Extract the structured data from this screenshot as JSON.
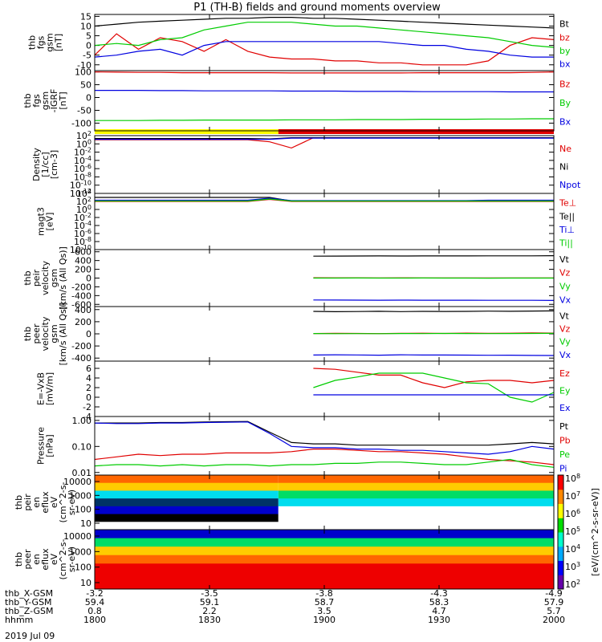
{
  "title": "P1 (TH-B) fields and ground moments overview",
  "date": "2019 Jul 09",
  "time_axis": {
    "row_labels": [
      "thb_X-GSM",
      "thb_Y-GSM",
      "thb_Z-GSM",
      "hhmm"
    ],
    "columns": [
      {
        "x": -3.2,
        "y": 59.4,
        "z": 0.8,
        "hhmm": "1800"
      },
      {
        "x": -3.5,
        "y": 59.1,
        "z": 2.2,
        "hhmm": "1830"
      },
      {
        "x": -3.8,
        "y": 58.7,
        "z": 3.5,
        "hhmm": "1900"
      },
      {
        "x": -4.3,
        "y": 58.3,
        "z": 4.7,
        "hhmm": "1930"
      },
      {
        "x": -4.9,
        "y": 57.9,
        "z": 5.7,
        "hhmm": "2000"
      }
    ]
  },
  "colors": {
    "black": "#000000",
    "red": "#e00000",
    "green": "#00cc00",
    "blue": "#0000e0",
    "yellow": "#ffff00"
  },
  "colorbar": {
    "label": "[eV/(cm^2-s-sr-eV)]",
    "ticks": [
      "10^2",
      "10^3",
      "10^4",
      "10^5",
      "10^6",
      "10^7",
      "10^8"
    ]
  },
  "status_bar": [
    {
      "from": "1800",
      "to": "1848",
      "color": "yellow"
    },
    {
      "from": "1848",
      "to": "2000",
      "color": "red"
    }
  ],
  "panels": [
    {
      "id": "fgs-mag",
      "ylabel": [
        "thb",
        "fgs",
        "gsm",
        "[nT]"
      ],
      "type": "line",
      "scale": "linear",
      "yticks": [
        "15",
        "10",
        "5",
        "0",
        "-5",
        "-10"
      ],
      "ylim": [
        -13,
        16
      ],
      "series": [
        {
          "name": "Bt",
          "color": "black",
          "values": [
            10,
            11,
            12,
            12.5,
            13,
            13.5,
            14,
            14,
            14.5,
            14.5,
            14,
            14,
            13.5,
            13,
            12.5,
            12,
            11.5,
            11,
            10.5,
            10,
            9.5,
            9
          ]
        },
        {
          "name": "bz",
          "color": "red",
          "values": [
            -5,
            6,
            -2,
            4,
            2,
            -3,
            3,
            -3,
            -6,
            -7,
            -7,
            -8,
            -8,
            -9,
            -9,
            -10,
            -10,
            -10,
            -8,
            0,
            4,
            3
          ]
        },
        {
          "name": "by",
          "color": "green",
          "values": [
            0,
            1,
            0,
            3,
            4,
            8,
            10,
            12,
            12,
            12,
            11,
            10,
            10,
            9,
            8,
            7,
            6,
            5,
            4,
            2,
            0,
            -1
          ]
        },
        {
          "name": "bx",
          "color": "blue",
          "values": [
            -6,
            -5,
            -3,
            -2,
            -5,
            0,
            2,
            2,
            2,
            2,
            2,
            2,
            2,
            2,
            1,
            0,
            0,
            -2,
            -3,
            -5,
            -6,
            -6
          ]
        }
      ]
    },
    {
      "id": "fgs-ssm",
      "ylabel": [
        "thb",
        "fgs",
        "gsm",
        "-IGRF",
        "[nT]"
      ],
      "type": "line",
      "scale": "linear",
      "yticks": [
        "100",
        "50",
        "0",
        "-50",
        "-100"
      ],
      "ylim": [
        -130,
        105
      ],
      "series": [
        {
          "name": "Bz",
          "color": "red",
          "values": [
            100,
            99,
            98,
            98,
            97,
            97,
            97,
            97,
            97,
            96,
            96,
            96,
            96,
            96,
            96,
            97,
            97,
            97,
            97,
            97,
            98,
            100
          ]
        },
        {
          "name": "By",
          "color": "green",
          "values": [
            -90,
            -90,
            -90,
            -89,
            -89,
            -88,
            -88,
            -88,
            -88,
            -87,
            -87,
            -87,
            -86,
            -86,
            -86,
            -85,
            -85,
            -85,
            -84,
            -84,
            -83,
            -83
          ]
        },
        {
          "name": "Bx",
          "color": "blue",
          "values": [
            28,
            28,
            28,
            27,
            27,
            26,
            26,
            26,
            26,
            25,
            25,
            25,
            24,
            24,
            24,
            23,
            23,
            23,
            23,
            22,
            22,
            22
          ]
        }
      ]
    },
    {
      "id": "density",
      "ylabel": [
        "Density",
        "[1/cc]",
        "[cm-3]"
      ],
      "type": "line",
      "scale": "log",
      "yticks": [
        "10^2",
        "10^0",
        "10^-2",
        "10^-4",
        "10^-6",
        "10^-8",
        "10^-10",
        "10^-12"
      ],
      "ylim": [
        -12,
        2
      ],
      "series": [
        {
          "name": "Ne",
          "color": "red",
          "values": [
            1,
            1,
            1,
            1,
            1,
            1,
            1,
            1,
            0.5,
            -1,
            1.5,
            1.5,
            1.5,
            1.5,
            1.5,
            1.5,
            1.5,
            1.5,
            1.5,
            1.5,
            1.5,
            1.5
          ]
        },
        {
          "name": "Ni",
          "color": "black",
          "values": [
            1.3,
            1.3,
            1.3,
            1.3,
            1.3,
            1.3,
            1.3,
            1.3,
            1.2,
            1.5,
            1.5,
            1.5,
            1.5,
            1.5,
            1.5,
            1.5,
            1.5,
            1.5,
            1.5,
            1.5,
            1.5,
            1.5
          ]
        },
        {
          "name": "Npot",
          "color": "blue",
          "values": [
            1.1,
            1.1,
            1.1,
            1.1,
            1.1,
            1.1,
            1.1,
            1.1,
            1.1,
            1.4,
            1.4,
            1.4,
            1.4,
            1.4,
            1.4,
            1.4,
            1.4,
            1.4,
            1.4,
            1.4,
            1.4,
            1.4
          ]
        }
      ]
    },
    {
      "id": "temperature",
      "ylabel": [
        "magt3",
        "[eV]"
      ],
      "type": "line",
      "scale": "log",
      "yticks": [
        "10^4",
        "10^2",
        "10^0",
        "10^-2",
        "10^-4",
        "10^-6",
        "10^-8",
        "10^-10"
      ],
      "ylim": [
        -10,
        4
      ],
      "series": [
        {
          "name": "Te⊥",
          "color": "red",
          "values": [
            2,
            2,
            2,
            2,
            2,
            2,
            2,
            2,
            2.5,
            2,
            2,
            2,
            2,
            2,
            2,
            2,
            2,
            2,
            2,
            2,
            2,
            2
          ]
        },
        {
          "name": "Te||",
          "color": "black",
          "values": [
            3,
            3,
            3,
            3,
            3,
            3,
            3,
            3,
            3,
            2.1,
            2.1,
            2.1,
            2.1,
            2.1,
            2.1,
            2.1,
            2.1,
            2.1,
            2.1,
            2.1,
            2.1,
            2.1
          ]
        },
        {
          "name": "Ti⊥",
          "color": "blue",
          "values": [
            2.3,
            2.3,
            2.3,
            2.3,
            2.3,
            2.3,
            2.3,
            2.3,
            2.8,
            2.2,
            2.2,
            2.2,
            2.2,
            2.2,
            2.2,
            2.2,
            2.2,
            2.2,
            2.3,
            2.3,
            2.3,
            2.3
          ]
        },
        {
          "name": "Ti||",
          "color": "green",
          "values": [
            2.1,
            2.1,
            2.1,
            2.1,
            2.1,
            2.1,
            2.1,
            2.1,
            2.6,
            2.1,
            2.1,
            2.1,
            2.1,
            2.1,
            2.1,
            2.1,
            2.1,
            2.1,
            2.1,
            2.1,
            2.1,
            2.1
          ]
        }
      ]
    },
    {
      "id": "ion-velocity",
      "ylabel": [
        "thb",
        "peir",
        "velocity",
        "gsm",
        "[km/s (All Qs)]"
      ],
      "type": "line",
      "scale": "linear",
      "yticks": [
        "600",
        "400",
        "200",
        "0",
        "-200",
        "-400",
        "-600"
      ],
      "ylim": [
        -650,
        650
      ],
      "data_start": "1855",
      "series": [
        {
          "name": "Vt",
          "color": "black",
          "values": [
            null,
            null,
            null,
            null,
            null,
            null,
            null,
            null,
            null,
            null,
            500,
            502,
            503,
            505,
            504,
            506,
            505,
            506,
            507,
            508,
            508,
            510
          ]
        },
        {
          "name": "Vz",
          "color": "red",
          "values": [
            null,
            null,
            null,
            null,
            null,
            null,
            null,
            null,
            null,
            null,
            8,
            5,
            6,
            4,
            5,
            3,
            4,
            3,
            2,
            2,
            3,
            2
          ]
        },
        {
          "name": "Vy",
          "color": "green",
          "values": [
            null,
            null,
            null,
            null,
            null,
            null,
            null,
            null,
            null,
            null,
            0,
            0,
            1,
            0,
            0,
            1,
            0,
            0,
            -1,
            0,
            0,
            0
          ]
        },
        {
          "name": "Vx",
          "color": "blue",
          "values": [
            null,
            null,
            null,
            null,
            null,
            null,
            null,
            null,
            null,
            null,
            -500,
            -502,
            -503,
            -505,
            -504,
            -506,
            -505,
            -506,
            -507,
            -508,
            -508,
            -510
          ]
        }
      ]
    },
    {
      "id": "electron-velocity",
      "ylabel": [
        "thb",
        "peer",
        "velocity",
        "gsm",
        "[km/s (All Qs)]"
      ],
      "type": "line",
      "scale": "linear",
      "yticks": [
        "400",
        "200",
        "0",
        "-200",
        "-400"
      ],
      "ylim": [
        -450,
        450
      ],
      "data_start": "1855",
      "series": [
        {
          "name": "Vt",
          "color": "black",
          "values": [
            null,
            null,
            null,
            null,
            null,
            null,
            null,
            null,
            null,
            null,
            370,
            365,
            368,
            372,
            366,
            370,
            369,
            371,
            374,
            372,
            376,
            378
          ]
        },
        {
          "name": "Vz",
          "color": "red",
          "values": [
            null,
            null,
            null,
            null,
            null,
            null,
            null,
            null,
            null,
            null,
            5,
            8,
            6,
            4,
            8,
            10,
            6,
            12,
            8,
            10,
            15,
            12
          ]
        },
        {
          "name": "Vy",
          "color": "green",
          "values": [
            null,
            null,
            null,
            null,
            null,
            null,
            null,
            null,
            null,
            null,
            5,
            2,
            4,
            3,
            5,
            4,
            6,
            5,
            4,
            5,
            6,
            8
          ]
        },
        {
          "name": "Vx",
          "color": "blue",
          "values": [
            null,
            null,
            null,
            null,
            null,
            null,
            null,
            null,
            null,
            null,
            -350,
            -345,
            -348,
            -352,
            -346,
            -350,
            -349,
            -351,
            -354,
            -352,
            -356,
            -358
          ]
        }
      ]
    },
    {
      "id": "efield",
      "ylabel": [
        "E=-VxB",
        "[mV/m]"
      ],
      "type": "line",
      "scale": "linear",
      "yticks": [
        "6",
        "4",
        "2",
        "0",
        "-2",
        "-4"
      ],
      "ylim": [
        -4,
        7.5
      ],
      "data_start": "1855",
      "series": [
        {
          "name": "Ez",
          "color": "red",
          "values": [
            null,
            null,
            null,
            null,
            null,
            null,
            null,
            null,
            null,
            null,
            6,
            5.8,
            5.2,
            4.6,
            4.6,
            3,
            2,
            3.2,
            3.5,
            3.5,
            3,
            3.5
          ]
        },
        {
          "name": "Ey",
          "color": "green",
          "values": [
            null,
            null,
            null,
            null,
            null,
            null,
            null,
            null,
            null,
            null,
            2,
            3.5,
            4.2,
            5,
            5,
            5,
            4,
            3,
            2.8,
            0,
            -1,
            1
          ]
        },
        {
          "name": "Ex",
          "color": "blue",
          "values": [
            null,
            null,
            null,
            null,
            null,
            null,
            null,
            null,
            null,
            null,
            0.5,
            0.5,
            0.5,
            0.5,
            0.5,
            0.5,
            0.5,
            0.5,
            0.5,
            0.5,
            0.5,
            0.5
          ]
        }
      ]
    },
    {
      "id": "pressure",
      "ylabel": [
        "Pressure",
        "[nPa]"
      ],
      "type": "line",
      "scale": "log",
      "yticks": [
        "1.00",
        "0.10",
        "0.01"
      ],
      "ylim": [
        -2.1,
        0.15
      ],
      "series": [
        {
          "name": "Pt",
          "color": "black",
          "values": [
            -0.1,
            -0.1,
            -0.1,
            -0.08,
            -0.08,
            -0.06,
            -0.05,
            -0.04,
            -0.45,
            -0.85,
            -0.9,
            -0.9,
            -0.95,
            -0.95,
            -0.95,
            -0.95,
            -0.95,
            -0.95,
            -0.95,
            -0.9,
            -0.85,
            -0.9
          ]
        },
        {
          "name": "Pb",
          "color": "red",
          "values": [
            -1.5,
            -1.4,
            -1.3,
            -1.35,
            -1.3,
            -1.3,
            -1.25,
            -1.25,
            -1.25,
            -1.2,
            -1.1,
            -1.1,
            -1.15,
            -1.2,
            -1.2,
            -1.25,
            -1.3,
            -1.4,
            -1.5,
            -1.55,
            -1.6,
            -1.7
          ]
        },
        {
          "name": "Pe",
          "color": "green",
          "values": [
            -1.75,
            -1.7,
            -1.7,
            -1.75,
            -1.7,
            -1.75,
            -1.7,
            -1.7,
            -1.75,
            -1.7,
            -1.7,
            -1.65,
            -1.65,
            -1.6,
            -1.6,
            -1.65,
            -1.7,
            -1.7,
            -1.6,
            -1.5,
            -1.7,
            -1.8
          ]
        },
        {
          "name": "Pi",
          "color": "blue",
          "values": [
            -0.1,
            -0.12,
            -0.12,
            -0.1,
            -0.1,
            -0.08,
            -0.07,
            -0.06,
            -0.5,
            -1.0,
            -1.05,
            -1.05,
            -1.1,
            -1.1,
            -1.15,
            -1.15,
            -1.2,
            -1.25,
            -1.3,
            -1.2,
            -1.0,
            -1.1
          ]
        }
      ]
    },
    {
      "id": "ion-spectrogram",
      "ylabel": [
        "thb",
        "peir",
        "en",
        "eflux",
        "eV",
        "(cm^2-s-",
        "sr-eV)"
      ],
      "type": "heatmap",
      "scale": "log",
      "yticks": [
        "10000",
        "1000",
        "100",
        "10"
      ],
      "bands": [
        {
          "from": "1800",
          "to": "1848",
          "profile": [
            "orange",
            "yellow",
            "cyan",
            "dark",
            "blue",
            "black",
            "white"
          ]
        },
        {
          "from": "1848",
          "to": "2000",
          "profile": [
            "orange",
            "yellow",
            "green",
            "cyan",
            "white",
            "white",
            "white"
          ]
        }
      ]
    },
    {
      "id": "electron-spectrogram",
      "ylabel": [
        "thb",
        "peer",
        "en",
        "eflux",
        "eV",
        "(cm^2-s-",
        "sr-eV)"
      ],
      "type": "heatmap",
      "scale": "log",
      "yticks": [
        "10000",
        "1000",
        "100",
        "10"
      ],
      "bands": [
        {
          "from": "1800",
          "to": "2000",
          "profile": [
            "blue",
            "green",
            "yellow",
            "orange",
            "red",
            "red",
            "red"
          ]
        }
      ]
    }
  ]
}
